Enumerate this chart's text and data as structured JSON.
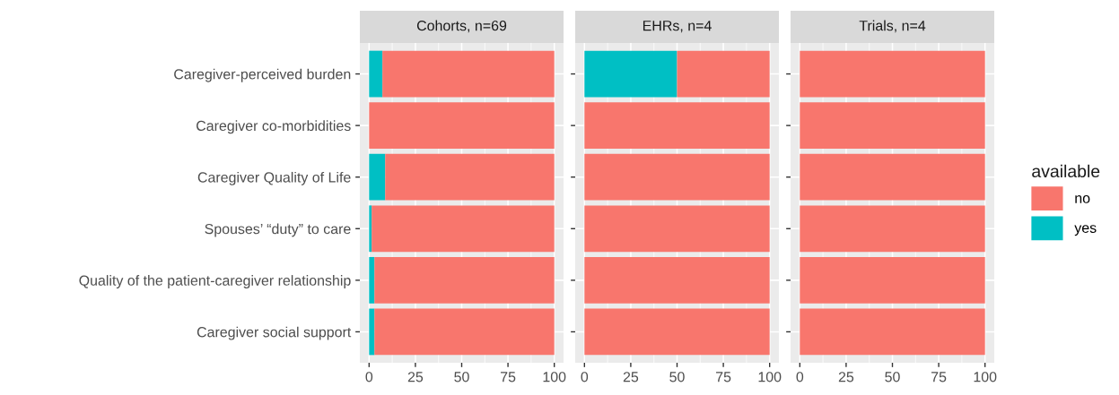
{
  "chart_data": [
    {
      "type": "bar",
      "orientation": "horizontal",
      "stacked": true,
      "title": "Cohorts, n=69",
      "categories": [
        "Caregiver-perceived burden",
        "Caregiver co-morbidities",
        "Caregiver Quality of Life",
        "Spouses’ “duty” to care",
        "Quality of the patient-caregiver relationship",
        "Caregiver social support"
      ],
      "series": [
        {
          "name": "yes",
          "color": "#00bfc4",
          "values": [
            7.2,
            0,
            8.7,
            1.4,
            2.9,
            2.9
          ]
        },
        {
          "name": "no",
          "color": "#f8766d",
          "values": [
            92.8,
            100,
            91.3,
            98.6,
            97.1,
            97.1
          ]
        }
      ],
      "xlim": [
        -5,
        105
      ],
      "xticks": [
        0,
        25,
        50,
        75,
        100
      ],
      "grid": true,
      "legend": "right",
      "legend_title": "available"
    },
    {
      "type": "bar",
      "orientation": "horizontal",
      "stacked": true,
      "title": "EHRs, n=4",
      "categories": [
        null,
        null,
        null,
        null,
        null,
        null
      ],
      "series": [
        {
          "color": "#00bfc4",
          "values": [
            50,
            0,
            0,
            0,
            0,
            0
          ]
        },
        {
          "color": "#f8766d",
          "values": [
            50,
            100,
            100,
            100,
            100,
            100
          ]
        }
      ],
      "xlim": [
        -5,
        105
      ],
      "xticks": [
        0,
        25,
        50,
        75,
        100
      ],
      "grid": true
    },
    {
      "type": "bar",
      "orientation": "horizontal",
      "stacked": true,
      "title": "Trials, n=4",
      "categories": [
        null,
        null,
        null,
        null,
        null,
        null
      ],
      "series": [
        {
          "color": "#00bfc4",
          "values": [
            0,
            0,
            0,
            0,
            0,
            0
          ]
        },
        {
          "color": "#f8766d",
          "values": [
            100,
            100,
            100,
            100,
            100,
            100
          ]
        }
      ],
      "xlim": [
        -5,
        105
      ],
      "xticks": [
        0,
        25,
        50,
        75,
        100
      ],
      "grid": true
    }
  ]
}
